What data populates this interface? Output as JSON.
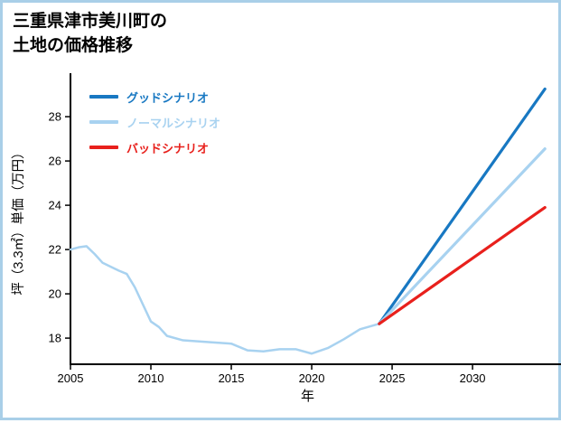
{
  "page": {
    "border_color": "#a9cfe8",
    "background": "#ffffff"
  },
  "title": {
    "line1": "三重県津市美川町の",
    "line2": "土地の価格推移"
  },
  "chart_data": {
    "type": "line",
    "title": "三重県津市美川町の土地の価格推移",
    "xlabel": "年",
    "ylabel": "坪（3.3㎡）単価（万円）",
    "xlim": [
      2005,
      2035.5
    ],
    "ylim": [
      16.82,
      29.8
    ],
    "xticks": [
      2005,
      2010,
      2015,
      2020,
      2025,
      2030
    ],
    "yticks": [
      18,
      20,
      22,
      24,
      26,
      28
    ],
    "grid": false,
    "legend_position": "upper-left-inside",
    "legend": [
      {
        "label": "グッドシナリオ",
        "color": "#1878c2"
      },
      {
        "label": "ノーマルシナリオ",
        "color": "#a8d2f0"
      },
      {
        "label": "バッドシナリオ",
        "color": "#e8201c"
      }
    ],
    "series": [
      {
        "id": "historical-normal",
        "name": "実績（ノーマルシナリオ）",
        "color": "#a8d2f0",
        "x": [
          2005,
          2005.5,
          2006,
          2006.5,
          2007,
          2008,
          2008.5,
          2009,
          2010,
          2010.5,
          2011,
          2012,
          2013,
          2014,
          2015,
          2016,
          2017,
          2018,
          2019,
          2020,
          2021,
          2022,
          2023,
          2024.2
        ],
        "y": [
          22.0,
          22.1,
          22.15,
          21.8,
          21.4,
          21.05,
          20.9,
          20.3,
          18.75,
          18.5,
          18.1,
          17.9,
          17.85,
          17.8,
          17.75,
          17.45,
          17.4,
          17.5,
          17.5,
          17.3,
          17.55,
          17.95,
          18.4,
          18.65
        ]
      },
      {
        "id": "good-scenario",
        "name": "グッドシナリオ",
        "color": "#1878c2",
        "x": [
          2024.2,
          2034.5
        ],
        "y": [
          18.65,
          29.25
        ]
      },
      {
        "id": "normal-scenario",
        "name": "ノーマルシナリオ",
        "color": "#a8d2f0",
        "x": [
          2024.2,
          2034.5
        ],
        "y": [
          18.65,
          26.55
        ]
      },
      {
        "id": "bad-scenario",
        "name": "バッドシナリオ",
        "color": "#e8201c",
        "x": [
          2024.2,
          2034.5
        ],
        "y": [
          18.65,
          23.9
        ]
      }
    ]
  }
}
